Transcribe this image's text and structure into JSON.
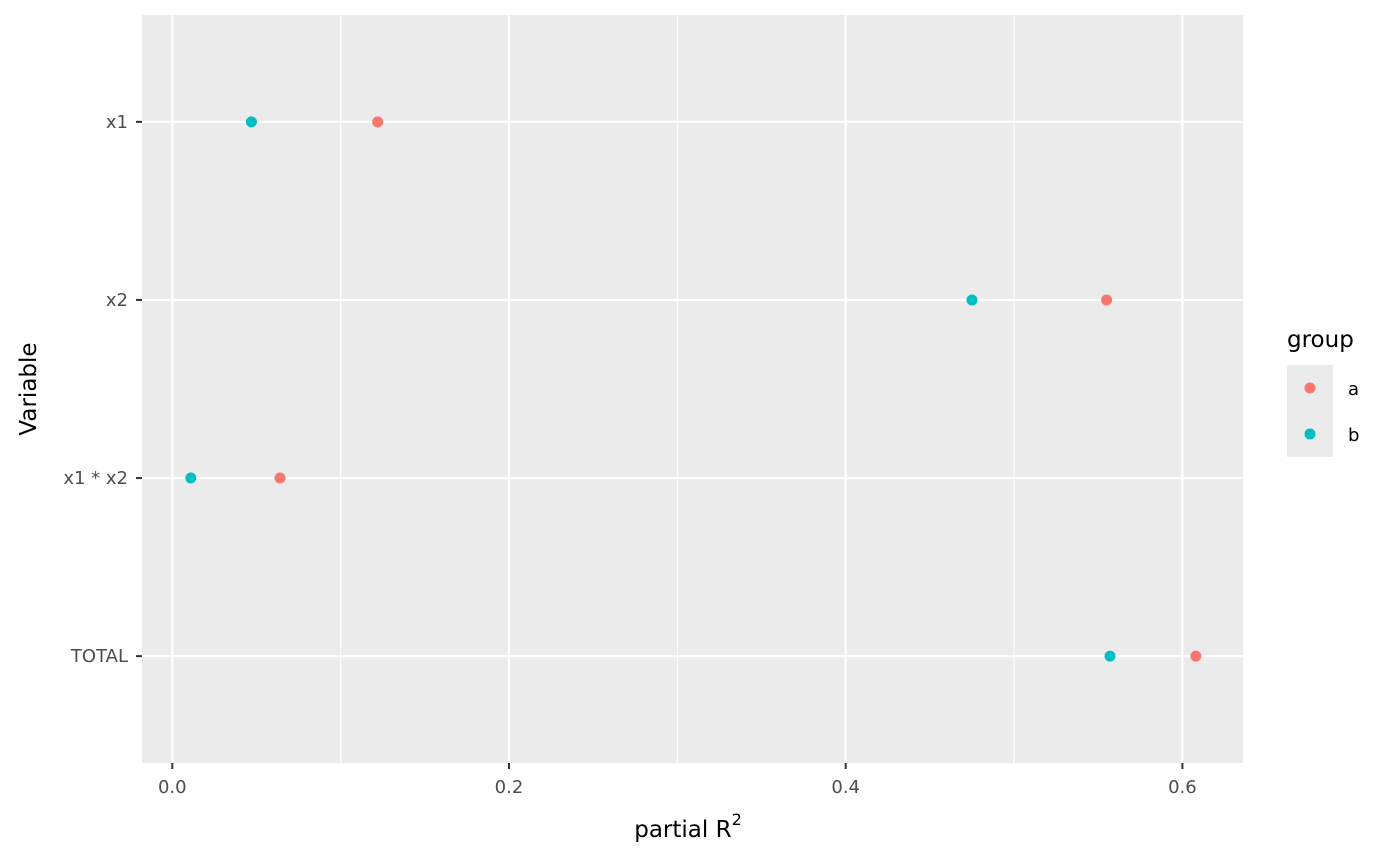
{
  "chart_data": {
    "type": "scatter",
    "title": "",
    "xlabel": "partial R",
    "xlabel_superscript": "2",
    "ylabel": "Variable",
    "categories": [
      "x1",
      "x2",
      "x1 * x2",
      "TOTAL"
    ],
    "xlim": [
      -0.018,
      0.636
    ],
    "xticks": [
      0.0,
      0.2,
      0.4,
      0.6
    ],
    "xtick_labels": [
      "0.0",
      "0.2",
      "0.4",
      "0.6"
    ],
    "grid": true,
    "legend": {
      "title": "group",
      "placement": "right"
    },
    "series": [
      {
        "name": "a",
        "color": "#F8766D",
        "points": [
          {
            "category": "x1",
            "x": 0.122
          },
          {
            "category": "x2",
            "x": 0.555
          },
          {
            "category": "x1 * x2",
            "x": 0.064
          },
          {
            "category": "TOTAL",
            "x": 0.608
          }
        ]
      },
      {
        "name": "b",
        "color": "#00BFC4",
        "points": [
          {
            "category": "x1",
            "x": 0.047
          },
          {
            "category": "x2",
            "x": 0.475
          },
          {
            "category": "x1 * x2",
            "x": 0.011
          },
          {
            "category": "TOTAL",
            "x": 0.557
          }
        ]
      }
    ]
  }
}
